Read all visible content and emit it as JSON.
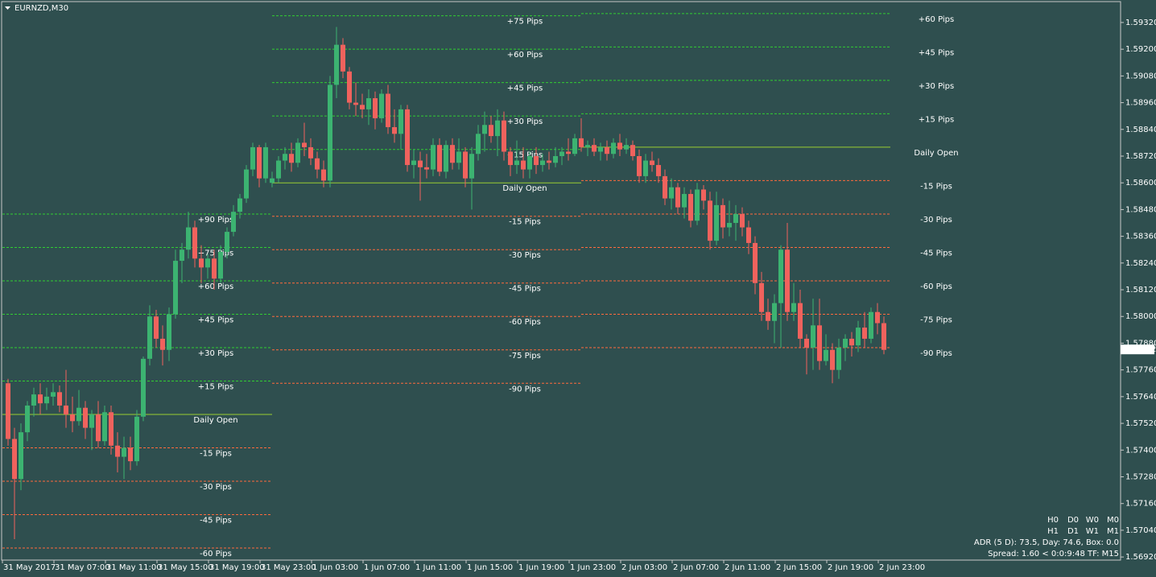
{
  "chart_data": {
    "type": "candlestick",
    "title": "EURNZD,M30",
    "up_color": "#3cb371",
    "down_color": "#f0625d",
    "background": "#2f4f4f",
    "ylim": [
      1.56906,
      1.59421
    ],
    "yticks": [
      {
        "value": 1.5932,
        "label": "1.59320"
      },
      {
        "value": 1.592,
        "label": "1.59200"
      },
      {
        "value": 1.5908,
        "label": "1.59080"
      },
      {
        "value": 1.5896,
        "label": "1.58960"
      },
      {
        "value": 1.5884,
        "label": "1.58840"
      },
      {
        "value": 1.5872,
        "label": "1.58720"
      },
      {
        "value": 1.586,
        "label": "1.58600"
      },
      {
        "value": 1.5848,
        "label": "1.58480"
      },
      {
        "value": 1.5836,
        "label": "1.58360"
      },
      {
        "value": 1.5824,
        "label": "1.58240"
      },
      {
        "value": 1.5812,
        "label": "1.58120"
      },
      {
        "value": 1.58,
        "label": "1.58000"
      },
      {
        "value": 1.5788,
        "label": "1.57880"
      },
      {
        "value": 1.5776,
        "label": "1.57760"
      },
      {
        "value": 1.5764,
        "label": "1.57640"
      },
      {
        "value": 1.5752,
        "label": "1.57520"
      },
      {
        "value": 1.574,
        "label": "1.57400"
      },
      {
        "value": 1.5728,
        "label": "1.57280"
      },
      {
        "value": 1.5716,
        "label": "1.57160"
      },
      {
        "value": 1.5704,
        "label": "1.57040"
      },
      {
        "value": 1.5692,
        "label": "1.56920"
      }
    ],
    "current_price": 1.57852,
    "categories": [
      "31 May 2017",
      null,
      null,
      null,
      null,
      null,
      null,
      null,
      "31 May 07:00",
      null,
      null,
      null,
      null,
      null,
      null,
      null,
      "31 May 11:00",
      null,
      null,
      null,
      null,
      null,
      null,
      null,
      "31 May 15:00",
      null,
      null,
      null,
      null,
      null,
      null,
      null,
      "31 May 19:00",
      null,
      null,
      null,
      null,
      null,
      null,
      null,
      "31 May 23:00",
      null,
      null,
      null,
      null,
      null,
      null,
      null,
      "1 Jun 03:00",
      null,
      null,
      null,
      null,
      null,
      null,
      null,
      "1 Jun 07:00",
      null,
      null,
      null,
      null,
      null,
      null,
      null,
      "1 Jun 11:00",
      null,
      null,
      null,
      null,
      null,
      null,
      null,
      "1 Jun 15:00",
      null,
      null,
      null,
      null,
      null,
      null,
      null,
      "1 Jun 19:00",
      null,
      null,
      null,
      null,
      null,
      null,
      null,
      "1 Jun 23:00",
      null,
      null,
      null,
      null,
      null,
      null,
      null,
      "2 Jun 03:00",
      null,
      null,
      null,
      null,
      null,
      null,
      null,
      "2 Jun 07:00",
      null,
      null,
      null,
      null,
      null,
      null,
      null,
      "2 Jun 11:00",
      null,
      null,
      null,
      null,
      null,
      null,
      null,
      "2 Jun 15:00",
      null,
      null,
      null,
      null,
      null,
      null,
      null,
      "2 Jun 19:00",
      null,
      null,
      null,
      null,
      null,
      null,
      null,
      "2 Jun 23:00"
    ],
    "open": [
      1.577,
      1.5745,
      1.5727,
      1.5748,
      1.576,
      1.5765,
      1.5761,
      1.5764,
      1.5766,
      1.576,
      1.5756,
      1.5753,
      1.5759,
      1.575,
      1.5756,
      1.5744,
      1.5757,
      1.5742,
      1.5737,
      1.5741,
      1.5735,
      1.5755,
      1.5781,
      1.58,
      1.579,
      1.5785,
      1.5801,
      1.5825,
      1.583,
      1.584,
      1.5826,
      1.5822,
      1.5826,
      1.5817,
      1.5829,
      1.5838,
      1.5847,
      1.5853,
      1.5866,
      1.5876,
      1.5862,
      1.586,
      1.5862,
      1.587,
      1.5873,
      1.5869,
      1.5878,
      1.5876,
      1.5871,
      1.5866,
      1.5861,
      1.5904,
      1.5922,
      1.591,
      1.5896,
      1.5895,
      1.5893,
      1.5898,
      1.5889,
      1.59,
      1.5885,
      1.5882,
      1.5893,
      1.5868,
      1.587,
      1.5867,
      1.5866,
      1.5877,
      1.5865,
      1.5877,
      1.5869,
      1.5874,
      1.5862,
      1.5873,
      1.5882,
      1.5886,
      1.5881,
      1.5888,
      1.5874,
      1.5868,
      1.587,
      1.5866,
      1.5872,
      1.5868,
      1.587,
      1.5869,
      1.5872,
      1.5874,
      1.5873,
      1.588,
      1.5876,
      1.5877,
      1.5874,
      1.5876,
      1.5873,
      1.5878,
      1.5875,
      1.5877,
      1.5872,
      1.5863,
      1.587,
      1.5868,
      1.5863,
      1.5853,
      1.5858,
      1.5849,
      1.5855,
      1.5843,
      1.5857,
      1.5852,
      1.5834,
      1.585,
      1.584,
      1.5842,
      1.5846,
      1.584,
      1.5833,
      1.5815,
      1.5802,
      1.5798,
      1.5806,
      1.583,
      1.5802,
      1.5806,
      1.579,
      1.5786,
      1.5796,
      1.578,
      1.5785,
      1.5776,
      1.5786,
      1.579,
      1.5787,
      1.5795,
      1.579,
      1.5802,
      1.5797
    ],
    "high": [
      1.5772,
      1.575,
      1.5752,
      1.5762,
      1.5768,
      1.577,
      1.5768,
      1.577,
      1.5769,
      1.5776,
      1.5764,
      1.5767,
      1.5762,
      1.5758,
      1.5762,
      1.576,
      1.576,
      1.5748,
      1.5746,
      1.5746,
      1.5758,
      1.5782,
      1.5805,
      1.5803,
      1.5796,
      1.5804,
      1.583,
      1.5833,
      1.5847,
      1.5843,
      1.5832,
      1.5828,
      1.583,
      1.5832,
      1.584,
      1.585,
      1.5855,
      1.5868,
      1.5878,
      1.5877,
      1.5878,
      1.5865,
      1.5872,
      1.5876,
      1.5878,
      1.588,
      1.5887,
      1.588,
      1.5874,
      1.587,
      1.5908,
      1.593,
      1.5925,
      1.5912,
      1.5905,
      1.59,
      1.5902,
      1.5901,
      1.5902,
      1.5904,
      1.5893,
      1.5895,
      1.5895,
      1.5875,
      1.5874,
      1.5873,
      1.588,
      1.588,
      1.5879,
      1.588,
      1.588,
      1.5876,
      1.5876,
      1.5886,
      1.5892,
      1.589,
      1.5893,
      1.5892,
      1.5876,
      1.5879,
      1.5876,
      1.5874,
      1.5876,
      1.5873,
      1.5874,
      1.5876,
      1.5876,
      1.588,
      1.5882,
      1.5889,
      1.5879,
      1.588,
      1.5878,
      1.5879,
      1.588,
      1.5882,
      1.588,
      1.5879,
      1.5875,
      1.5873,
      1.5874,
      1.5871,
      1.5866,
      1.5862,
      1.586,
      1.5858,
      1.5857,
      1.586,
      1.5859,
      1.5856,
      1.5856,
      1.5853,
      1.5852,
      1.585,
      1.5849,
      1.5843,
      1.5836,
      1.582,
      1.5808,
      1.581,
      1.5832,
      1.5842,
      1.5815,
      1.5812,
      1.5792,
      1.5808,
      1.5808,
      1.5792,
      1.5788,
      1.579,
      1.5792,
      1.5793,
      1.5798,
      1.5802,
      1.5804,
      1.5806,
      1.58
    ],
    "low": [
      1.5742,
      1.57,
      1.5722,
      1.5744,
      1.5755,
      1.5756,
      1.5758,
      1.576,
      1.5757,
      1.575,
      1.5748,
      1.5751,
      1.5745,
      1.574,
      1.5741,
      1.5742,
      1.5738,
      1.573,
      1.5727,
      1.5731,
      1.5733,
      1.5753,
      1.5778,
      1.5786,
      1.5778,
      1.578,
      1.5799,
      1.5815,
      1.5826,
      1.5822,
      1.5815,
      1.5817,
      1.5812,
      1.5815,
      1.5826,
      1.5836,
      1.5844,
      1.5851,
      1.5863,
      1.5858,
      1.586,
      1.5858,
      1.586,
      1.5866,
      1.5865,
      1.5867,
      1.5872,
      1.5868,
      1.5862,
      1.5858,
      1.5858,
      1.5898,
      1.5907,
      1.5893,
      1.589,
      1.5889,
      1.5886,
      1.5884,
      1.5887,
      1.5882,
      1.5878,
      1.5875,
      1.5865,
      1.5862,
      1.5852,
      1.5862,
      1.5863,
      1.5863,
      1.5862,
      1.5866,
      1.5866,
      1.5858,
      1.5848,
      1.587,
      1.5874,
      1.5878,
      1.5872,
      1.587,
      1.5863,
      1.5864,
      1.5862,
      1.5862,
      1.5864,
      1.5865,
      1.5866,
      1.5867,
      1.5868,
      1.587,
      1.5872,
      1.5874,
      1.5872,
      1.5872,
      1.587,
      1.587,
      1.5871,
      1.5872,
      1.5873,
      1.587,
      1.586,
      1.586,
      1.5865,
      1.586,
      1.585,
      1.5848,
      1.5846,
      1.5844,
      1.584,
      1.5841,
      1.5848,
      1.583,
      1.5832,
      1.5835,
      1.5836,
      1.5834,
      1.5836,
      1.5828,
      1.581,
      1.5798,
      1.5794,
      1.5788,
      1.5786,
      1.5798,
      1.5798,
      1.5786,
      1.5774,
      1.5776,
      1.5776,
      1.5778,
      1.577,
      1.5772,
      1.578,
      1.5782,
      1.5784,
      1.5786,
      1.5788,
      1.5792,
      1.5783
    ],
    "close": [
      1.5745,
      1.5727,
      1.5748,
      1.576,
      1.5765,
      1.5761,
      1.5764,
      1.5766,
      1.576,
      1.5756,
      1.5753,
      1.5759,
      1.575,
      1.5756,
      1.5744,
      1.5757,
      1.5742,
      1.5737,
      1.5741,
      1.5735,
      1.5755,
      1.5781,
      1.58,
      1.579,
      1.5785,
      1.5801,
      1.5825,
      1.583,
      1.584,
      1.5826,
      1.5822,
      1.5826,
      1.5817,
      1.5829,
      1.5838,
      1.5847,
      1.5853,
      1.5866,
      1.5876,
      1.5862,
      1.5876,
      1.5862,
      1.587,
      1.5873,
      1.5869,
      1.5878,
      1.5876,
      1.5871,
      1.5866,
      1.5861,
      1.5904,
      1.5922,
      1.591,
      1.5896,
      1.5895,
      1.5893,
      1.5898,
      1.5889,
      1.59,
      1.5885,
      1.5882,
      1.5893,
      1.5868,
      1.587,
      1.5867,
      1.5866,
      1.5877,
      1.5865,
      1.5877,
      1.5869,
      1.5874,
      1.5862,
      1.5873,
      1.5882,
      1.5886,
      1.5881,
      1.5888,
      1.5874,
      1.5868,
      1.587,
      1.5866,
      1.5872,
      1.5868,
      1.587,
      1.5869,
      1.5872,
      1.5874,
      1.5873,
      1.588,
      1.5876,
      1.5877,
      1.5874,
      1.5876,
      1.5873,
      1.5878,
      1.5875,
      1.5877,
      1.5872,
      1.5863,
      1.587,
      1.5868,
      1.5863,
      1.5853,
      1.5858,
      1.5849,
      1.5855,
      1.5843,
      1.5857,
      1.5852,
      1.5834,
      1.585,
      1.584,
      1.5842,
      1.5846,
      1.584,
      1.5833,
      1.5815,
      1.5802,
      1.5798,
      1.5806,
      1.583,
      1.5802,
      1.5806,
      1.579,
      1.5786,
      1.5796,
      1.578,
      1.5785,
      1.5776,
      1.5786,
      1.579,
      1.5787,
      1.5795,
      1.579,
      1.5802,
      1.5797,
      1.5785
    ],
    "open_color": "#9acd32",
    "up_level_color": "#32cd32",
    "down_level_color": "#ff6a3d",
    "up_label_color": "#00ee00",
    "down_label_color": "#ffa500",
    "days": [
      {
        "open": 1.5756,
        "open_label": "Daily Open",
        "levels": [
          {
            "label": "+90 Pips",
            "value": 1.5846
          },
          {
            "label": "+75 Pips",
            "value": 1.5831
          },
          {
            "label": "+60 Pips",
            "value": 1.5816
          },
          {
            "label": "+45 Pips",
            "value": 1.5801
          },
          {
            "label": "+30 Pips",
            "value": 1.5786
          },
          {
            "label": "+15 Pips",
            "value": 1.5771
          },
          {
            "label": "-15 Pips",
            "value": 1.5741
          },
          {
            "label": "-30 Pips",
            "value": 1.5726
          },
          {
            "label": "-45 Pips",
            "value": 1.5711
          },
          {
            "label": "-60 Pips",
            "value": 1.5696
          }
        ]
      },
      {
        "open": 1.586,
        "open_label": "Daily Open",
        "levels": [
          {
            "label": "+75 Pips",
            "value": 1.5935
          },
          {
            "label": "+60 Pips",
            "value": 1.592
          },
          {
            "label": "+45 Pips",
            "value": 1.5905
          },
          {
            "label": "+30 Pips",
            "value": 1.589
          },
          {
            "label": "+15 Pips",
            "value": 1.5875
          },
          {
            "label": "-15 Pips",
            "value": 1.5845
          },
          {
            "label": "-30 Pips",
            "value": 1.583
          },
          {
            "label": "-45 Pips",
            "value": 1.5815
          },
          {
            "label": "-60 Pips",
            "value": 1.58
          },
          {
            "label": "-75 Pips",
            "value": 1.5785
          },
          {
            "label": "-90 Pips",
            "value": 1.577
          }
        ]
      },
      {
        "open": 1.5876,
        "open_label": "Daily Open",
        "levels": [
          {
            "label": "+60 Pips",
            "value": 1.5936
          },
          {
            "label": "+45 Pips",
            "value": 1.5921
          },
          {
            "label": "+30 Pips",
            "value": 1.5906
          },
          {
            "label": "+15 Pips",
            "value": 1.5891
          },
          {
            "label": "-15 Pips",
            "value": 1.5861
          },
          {
            "label": "-30 Pips",
            "value": 1.5846
          },
          {
            "label": "-45 Pips",
            "value": 1.5831
          },
          {
            "label": "-60 Pips",
            "value": 1.5816
          },
          {
            "label": "-75 Pips",
            "value": 1.5801
          },
          {
            "label": "-90 Pips",
            "value": 1.5786
          }
        ]
      }
    ],
    "info": {
      "periods": [
        [
          "H0",
          "D0",
          "W0",
          "M0"
        ],
        [
          "H1",
          "D1",
          "W1",
          "M1"
        ]
      ],
      "adr": "ADR (5 D): 73.5, Day: 74.6, Box: 0.0",
      "spread": "Spread: 1.60  <  0:0:9:48  TF: M15"
    }
  }
}
